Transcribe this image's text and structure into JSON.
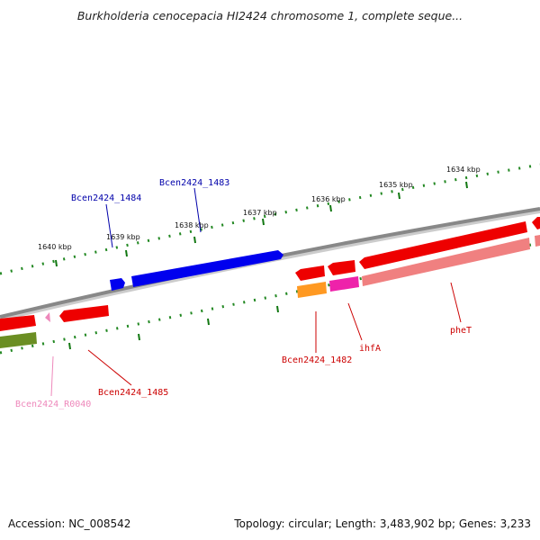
{
  "title": "Burkholderia cenocepacia HI2424 chromosome 1, complete seque...",
  "footer": {
    "accession": "Accession: NC_008542",
    "topology": "Topology: circular; Length: 3,483,902 bp; Genes: 3,233"
  },
  "ticks": [
    {
      "label": "1634 kbp"
    },
    {
      "label": "1635 kbp"
    },
    {
      "label": "1636 kbp"
    },
    {
      "label": "1637 kbp"
    },
    {
      "label": "1638 kbp"
    },
    {
      "label": "1639 kbp"
    },
    {
      "label": "1640 kbp"
    }
  ],
  "genes": [
    {
      "name": "Bcen2424_1484",
      "color": "#0000aa"
    },
    {
      "name": "Bcen2424_1483",
      "color": "#0000aa"
    },
    {
      "name": "Bcen2424_1482",
      "color": "#cc0000"
    },
    {
      "name": "ihfA",
      "color": "#cc0000"
    },
    {
      "name": "pheT",
      "color": "#cc0000"
    },
    {
      "name": "Bcen2424_1485",
      "color": "#cc0000"
    },
    {
      "name": "Bcen2424_R0040",
      "color": "#ee88bb"
    }
  ]
}
